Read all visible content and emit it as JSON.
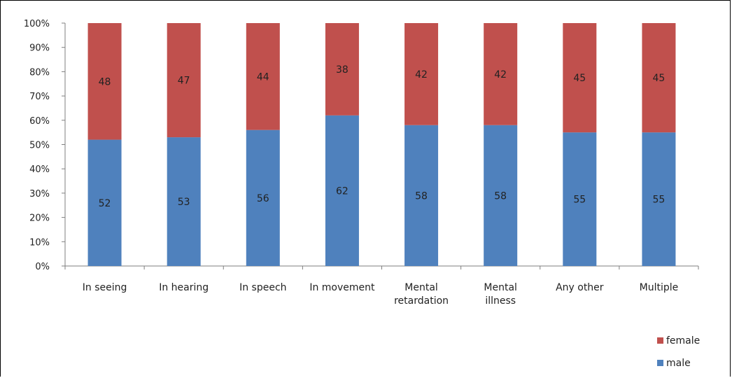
{
  "chart_data": {
    "type": "bar",
    "stacked": true,
    "percent_stacked": true,
    "categories": [
      [
        "In seeing"
      ],
      [
        "In hearing"
      ],
      [
        "In speech"
      ],
      [
        "In movement"
      ],
      [
        "Mental",
        "retardation"
      ],
      [
        "Mental",
        "illness"
      ],
      [
        "Any other"
      ],
      [
        "Multiple"
      ]
    ],
    "series": [
      {
        "name": "male",
        "color": "#4f81bd",
        "values": [
          52,
          53,
          56,
          62,
          58,
          58,
          55,
          55
        ]
      },
      {
        "name": "female",
        "color": "#c0504d",
        "values": [
          48,
          47,
          44,
          38,
          42,
          42,
          45,
          45
        ]
      }
    ],
    "ylim": [
      0,
      100
    ],
    "yticks": [
      "0%",
      "10%",
      "20%",
      "30%",
      "40%",
      "50%",
      "60%",
      "70%",
      "80%",
      "90%",
      "100%"
    ],
    "grid": false,
    "legend_position": "bottom-right",
    "legend_order": [
      "female",
      "male"
    ]
  }
}
